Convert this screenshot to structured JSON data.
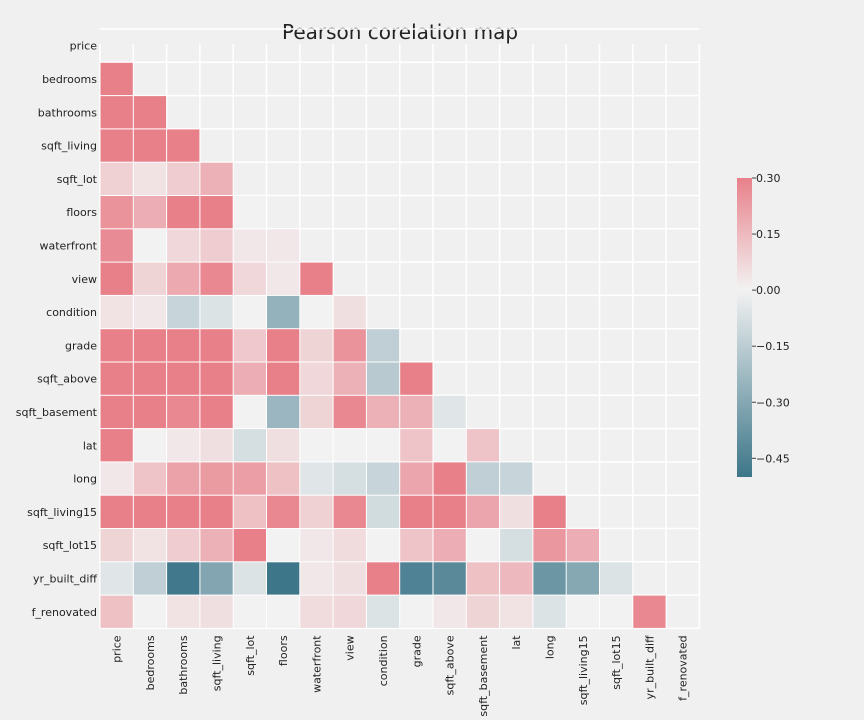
{
  "chart_data": {
    "type": "heatmap",
    "title": "Pearson corelation map",
    "variables": [
      "price",
      "bedrooms",
      "bathrooms",
      "sqft_living",
      "sqft_lot",
      "floors",
      "waterfront",
      "view",
      "condition",
      "grade",
      "sqft_above",
      "sqft_basement",
      "lat",
      "long",
      "sqft_living15",
      "sqft_lot15",
      "yr_built_diff",
      "f_renovated"
    ],
    "mask": "upper-triangle-including-diagonal",
    "values": [
      [],
      [
        0.31
      ],
      [
        0.3,
        0.3
      ],
      [
        0.31,
        0.3,
        0.3
      ],
      [
        0.09,
        0.04,
        0.1,
        0.17
      ],
      [
        0.25,
        0.18,
        0.3,
        0.3,
        0.0
      ],
      [
        0.27,
        0.0,
        0.07,
        0.1,
        0.03,
        0.03
      ],
      [
        0.3,
        0.08,
        0.19,
        0.28,
        0.07,
        0.03,
        0.3
      ],
      [
        0.04,
        0.03,
        -0.12,
        -0.06,
        0.0,
        -0.26,
        0.0,
        0.05
      ],
      [
        0.3,
        0.3,
        0.3,
        0.3,
        0.11,
        0.3,
        0.08,
        0.25,
        -0.14
      ],
      [
        0.3,
        0.3,
        0.3,
        0.3,
        0.18,
        0.3,
        0.07,
        0.17,
        -0.16,
        0.3
      ],
      [
        0.3,
        0.3,
        0.28,
        0.3,
        0.0,
        -0.24,
        0.08,
        0.28,
        0.17,
        0.17,
        -0.05
      ],
      [
        0.3,
        0.0,
        0.03,
        0.05,
        -0.08,
        0.05,
        0.0,
        0.0,
        0.0,
        0.12,
        0.0,
        0.12
      ],
      [
        0.03,
        0.12,
        0.21,
        0.23,
        0.22,
        0.13,
        -0.05,
        -0.08,
        -0.12,
        0.2,
        0.3,
        -0.14,
        -0.12
      ],
      [
        0.3,
        0.3,
        0.3,
        0.3,
        0.13,
        0.28,
        0.09,
        0.28,
        -0.09,
        0.3,
        0.3,
        0.2,
        0.05,
        0.3
      ],
      [
        0.08,
        0.04,
        0.1,
        0.17,
        0.3,
        0.0,
        0.03,
        0.06,
        0.0,
        0.12,
        0.18,
        0.0,
        -0.08,
        0.24,
        0.18
      ],
      [
        -0.05,
        -0.14,
        -0.49,
        -0.31,
        -0.06,
        -0.55,
        0.03,
        0.05,
        0.3,
        -0.45,
        -0.42,
        0.13,
        0.15,
        -0.37,
        -0.3,
        -0.06
      ],
      [
        0.13,
        0.0,
        0.04,
        0.05,
        0.0,
        0.0,
        0.06,
        0.07,
        -0.06,
        0.0,
        0.03,
        0.08,
        0.04,
        -0.06,
        0.0,
        0.0,
        0.28
      ]
    ],
    "colorbar": {
      "range": [
        -0.5,
        0.3
      ],
      "ticks": [
        "0.30",
        "0.15",
        "0.00",
        "−0.15",
        "−0.30",
        "−0.45"
      ],
      "tick_values": [
        0.3,
        0.15,
        0.0,
        -0.15,
        -0.3,
        -0.45
      ]
    },
    "colors": {
      "positive": "#e8808a",
      "neutral": "#f2f2f2",
      "negative": "#3d7689",
      "background": "#f0f0f0",
      "grid": "#ffffff"
    },
    "grid": true
  }
}
